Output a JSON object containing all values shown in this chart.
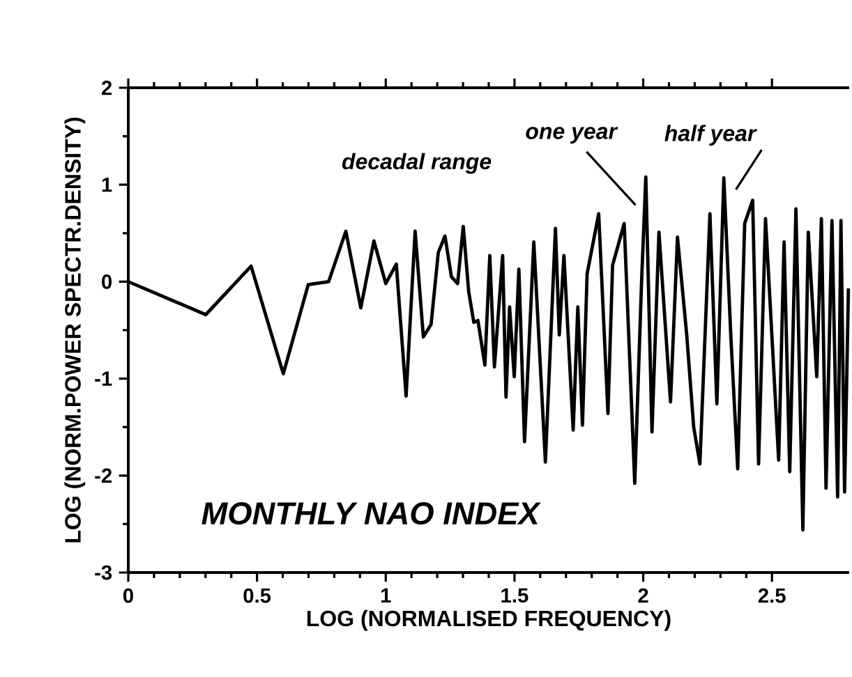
{
  "chart_data": {
    "type": "line",
    "xlabel": "LOG (NORMALISED FREQUENCY)",
    "ylabel": "LOG (NORM.POWER SPECTR.DENSITY)",
    "annotations": [
      "decadal range",
      "MONTHLY NAO INDEX",
      "one year",
      "half year"
    ],
    "x": [
      0,
      0.301,
      0.477,
      0.602,
      0.699,
      0.778,
      0.845,
      0.903,
      0.954,
      1.0,
      1.041,
      1.079,
      1.114,
      1.146,
      1.176,
      1.204,
      1.23,
      1.255,
      1.279,
      1.301,
      1.322,
      1.342,
      1.358,
      1.385,
      1.404,
      1.422,
      1.454,
      1.467,
      1.481,
      1.499,
      1.517,
      1.539,
      1.575,
      1.62,
      1.659,
      1.674,
      1.692,
      1.728,
      1.746,
      1.764,
      1.782,
      1.827,
      1.863,
      1.881,
      1.926,
      1.967,
      1.994,
      2.01,
      2.034,
      2.061,
      2.106,
      2.133,
      2.169,
      2.196,
      2.22,
      2.259,
      2.286,
      2.313,
      2.34,
      2.367,
      2.394,
      2.425,
      2.448,
      2.475,
      2.526,
      2.547,
      2.569,
      2.593,
      2.62,
      2.641,
      2.674,
      2.692,
      2.71,
      2.733,
      2.755,
      2.768,
      2.782,
      2.797
    ],
    "values": [
      0,
      -0.34,
      0.16,
      -0.95,
      -0.03,
      0,
      0.52,
      -0.27,
      0.42,
      -0.02,
      0.18,
      -1.18,
      0.52,
      -0.57,
      -0.44,
      0.3,
      0.47,
      0.05,
      -0.02,
      0.57,
      -0.1,
      -0.42,
      -0.4,
      -0.86,
      0.27,
      -0.88,
      0.27,
      -1.19,
      -0.26,
      -0.98,
      0.13,
      -1.65,
      0.41,
      -1.86,
      0.55,
      -0.55,
      0.27,
      -1.53,
      -0.26,
      -1.48,
      0.08,
      0.7,
      -1.36,
      0.17,
      0.6,
      -2.08,
      0.03,
      1.08,
      -1.55,
      0.51,
      -1.24,
      0.46,
      -0.55,
      -1.5,
      -1.88,
      0.7,
      -1.26,
      1.07,
      -0.55,
      -1.93,
      0.6,
      0.84,
      -1.88,
      0.65,
      -1.84,
      0.41,
      -1.96,
      0.75,
      -2.56,
      0.51,
      -0.98,
      0.65,
      -2.13,
      0.63,
      -2.22,
      0.63,
      -2.17,
      -0.07
    ],
    "color": "#000000",
    "xlim": [
      0,
      2.8
    ],
    "ylim": [
      -3,
      2
    ],
    "xticks": [
      0,
      0.5,
      1,
      1.5,
      2,
      2.5
    ],
    "yticks": [
      -3,
      -2,
      -1,
      0,
      1,
      2
    ]
  }
}
